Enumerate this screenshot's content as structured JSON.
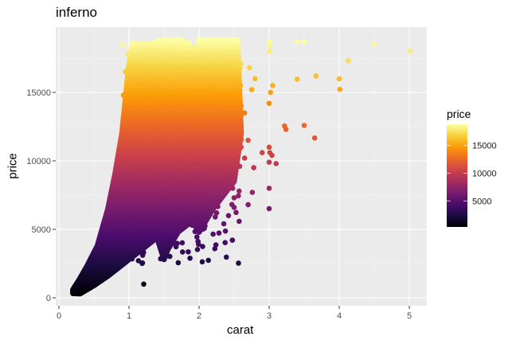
{
  "chart_data": {
    "type": "scatter",
    "title": "inferno",
    "xlabel": "carat",
    "ylabel": "price",
    "xlim": [
      -0.02,
      5.2
    ],
    "ylim": [
      -500,
      19300
    ],
    "x_ticks": [
      0,
      1,
      2,
      3,
      4,
      5
    ],
    "x_tick_labels": [
      "0",
      "1",
      "2",
      "3",
      "4",
      "5"
    ],
    "y_ticks": [
      0,
      5000,
      10000,
      15000
    ],
    "y_tick_labels": [
      "0",
      "5000",
      "10000",
      "15000"
    ],
    "grid": true,
    "color_scale": {
      "name": "inferno",
      "variable": "price",
      "range": [
        326,
        18823
      ],
      "stops": [
        "#000004",
        "#1b0c41",
        "#4a0c6b",
        "#781c6d",
        "#a52c60",
        "#cf4446",
        "#ed6925",
        "#fb9b06",
        "#f7d13d",
        "#fcffa4"
      ]
    },
    "legend": {
      "title": "price",
      "position": "right",
      "tick_labels": [
        "5000",
        "10000",
        "15000"
      ],
      "ticks": [
        5000,
        10000,
        15000
      ]
    },
    "description": "Diamonds dataset: price vs carat, points colored by price using inferno palette. Dense band from 0.2-2.5 carat, outliers up to 5.01 carat.",
    "dense_region": [
      [
        0.2,
        326
      ],
      [
        0.3,
        300
      ],
      [
        0.5,
        900
      ],
      [
        0.7,
        1600
      ],
      [
        0.9,
        2400
      ],
      [
        1.0,
        2800
      ],
      [
        1.2,
        3600
      ],
      [
        1.4,
        4400
      ],
      [
        1.5,
        2800
      ],
      [
        1.55,
        3500
      ],
      [
        1.7,
        4800
      ],
      [
        1.9,
        5600
      ],
      [
        2.0,
        4800
      ],
      [
        2.2,
        6500
      ],
      [
        2.5,
        8500
      ],
      [
        2.6,
        12000
      ],
      [
        2.55,
        18823
      ],
      [
        2.0,
        18823
      ],
      [
        1.95,
        18000
      ],
      [
        1.75,
        18823
      ],
      [
        1.5,
        18823
      ],
      [
        1.3,
        18500
      ],
      [
        1.05,
        18500
      ],
      [
        1.0,
        17000
      ],
      [
        0.9,
        12000
      ],
      [
        0.8,
        9000
      ],
      [
        0.7,
        6500
      ],
      [
        0.55,
        3800
      ],
      [
        0.4,
        2300
      ],
      [
        0.3,
        1400
      ],
      [
        0.2,
        600
      ]
    ],
    "outliers": [
      {
        "x": 3.0,
        "y": 18700
      },
      {
        "x": 3.01,
        "y": 18400
      },
      {
        "x": 3.0,
        "y": 18000
      },
      {
        "x": 3.4,
        "y": 18700
      },
      {
        "x": 3.5,
        "y": 18700
      },
      {
        "x": 4.5,
        "y": 18531
      },
      {
        "x": 5.01,
        "y": 18018
      },
      {
        "x": 4.13,
        "y": 17329
      },
      {
        "x": 3.67,
        "y": 16193
      },
      {
        "x": 4.0,
        "y": 15984
      },
      {
        "x": 3.4,
        "y": 15964
      },
      {
        "x": 4.01,
        "y": 15223
      },
      {
        "x": 3.05,
        "y": 15500
      },
      {
        "x": 3.02,
        "y": 15000
      },
      {
        "x": 3.0,
        "y": 14200
      },
      {
        "x": 2.72,
        "y": 16800
      },
      {
        "x": 2.8,
        "y": 16000
      },
      {
        "x": 2.75,
        "y": 15200
      },
      {
        "x": 3.22,
        "y": 12545
      },
      {
        "x": 3.24,
        "y": 12300
      },
      {
        "x": 3.5,
        "y": 12587
      },
      {
        "x": 3.65,
        "y": 11668
      },
      {
        "x": 3.0,
        "y": 11000
      },
      {
        "x": 3.01,
        "y": 10600
      },
      {
        "x": 3.04,
        "y": 10400
      },
      {
        "x": 3.1,
        "y": 9800
      },
      {
        "x": 3.0,
        "y": 9900
      },
      {
        "x": 2.9,
        "y": 10600
      },
      {
        "x": 2.65,
        "y": 10200
      },
      {
        "x": 2.58,
        "y": 9600
      },
      {
        "x": 2.78,
        "y": 9500
      },
      {
        "x": 2.5,
        "y": 9000
      },
      {
        "x": 3.0,
        "y": 8000
      },
      {
        "x": 3.0,
        "y": 6512
      },
      {
        "x": 2.76,
        "y": 7700
      },
      {
        "x": 2.5,
        "y": 7300
      },
      {
        "x": 2.48,
        "y": 8000
      },
      {
        "x": 2.7,
        "y": 6800
      },
      {
        "x": 2.42,
        "y": 6000
      },
      {
        "x": 2.5,
        "y": 6600
      },
      {
        "x": 2.2,
        "y": 7200
      },
      {
        "x": 2.35,
        "y": 7600
      },
      {
        "x": 2.25,
        "y": 6200
      },
      {
        "x": 2.1,
        "y": 5700
      },
      {
        "x": 2.0,
        "y": 5400
      },
      {
        "x": 1.9,
        "y": 5300
      },
      {
        "x": 1.6,
        "y": 4900
      },
      {
        "x": 1.52,
        "y": 3800
      },
      {
        "x": 1.53,
        "y": 3400
      },
      {
        "x": 0.76,
        "y": 6500
      },
      {
        "x": 0.8,
        "y": 7600
      },
      {
        "x": 0.85,
        "y": 8900
      },
      {
        "x": 0.9,
        "y": 9600
      },
      {
        "x": 0.92,
        "y": 14800
      },
      {
        "x": 0.95,
        "y": 16500
      },
      {
        "x": 0.98,
        "y": 17800
      },
      {
        "x": 0.52,
        "y": 2500
      },
      {
        "x": 0.45,
        "y": 2100
      },
      {
        "x": 0.73,
        "y": 4500
      },
      {
        "x": 1.21,
        "y": 1000
      },
      {
        "x": 2.35,
        "y": 18500
      },
      {
        "x": 2.45,
        "y": 17600
      },
      {
        "x": 2.5,
        "y": 17000
      },
      {
        "x": 2.6,
        "y": 14000
      },
      {
        "x": 2.55,
        "y": 12800
      },
      {
        "x": 2.65,
        "y": 13500
      },
      {
        "x": 2.7,
        "y": 11500
      },
      {
        "x": 2.6,
        "y": 11000
      },
      {
        "x": 2.4,
        "y": 9700
      }
    ]
  },
  "plot": {
    "title": "inferno",
    "xlabel": "carat",
    "ylabel": "price",
    "legend_title": "price",
    "colors": {
      "panel_bg": "#ebebeb",
      "grid_major": "#ffffff",
      "grid_minor": "#f5f5f5",
      "tick_text": "#4d4d4d"
    }
  }
}
